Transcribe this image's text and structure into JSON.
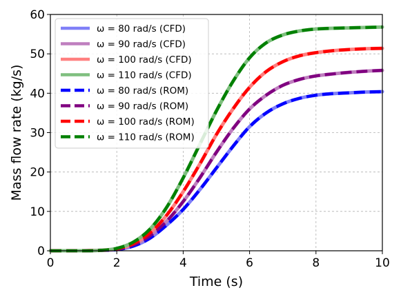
{
  "chart_data": {
    "type": "line",
    "xlabel": "Time (s)",
    "ylabel": "Mass flow rate (kg/s)",
    "xlim": [
      0,
      10
    ],
    "ylim": [
      0,
      60
    ],
    "xticks": [
      "0",
      "2",
      "4",
      "6",
      "8",
      "10"
    ],
    "yticks": [
      "0",
      "10",
      "20",
      "30",
      "40",
      "50",
      "60"
    ],
    "grid": true,
    "legend_position": "top-left",
    "x": [
      0,
      0.5,
      1,
      1.5,
      2,
      2.5,
      3,
      3.5,
      4,
      4.5,
      5,
      5.5,
      6,
      6.5,
      7,
      7.5,
      8,
      8.5,
      9,
      9.5,
      10
    ],
    "series": [
      {
        "name": "ω = 80 rad/s (CFD)",
        "color": "#7f7ff7",
        "style": "solid",
        "values": [
          0,
          0,
          0,
          0.1,
          0.3,
          1.2,
          3.2,
          6.5,
          10.5,
          15.5,
          21,
          26.5,
          31.5,
          35,
          37.3,
          38.7,
          39.5,
          39.9,
          40.1,
          40.3,
          40.4
        ]
      },
      {
        "name": "ω = 90 rad/s (CFD)",
        "color": "#bf7fbf",
        "style": "solid",
        "values": [
          0,
          0,
          0,
          0.1,
          0.4,
          1.5,
          3.8,
          7.5,
          12.5,
          18.5,
          25,
          31,
          36,
          39.5,
          42,
          43.5,
          44.4,
          44.9,
          45.3,
          45.6,
          45.8
        ]
      },
      {
        "name": "ω = 100 rad/s (CFD)",
        "color": "#ff7f7f",
        "style": "solid",
        "values": [
          0,
          0,
          0,
          0.1,
          0.5,
          1.8,
          4.5,
          9,
          15,
          22,
          29.5,
          36,
          41.5,
          45.5,
          48,
          49.5,
          50.3,
          50.8,
          51.1,
          51.3,
          51.4
        ]
      },
      {
        "name": "ω = 110 rad/s (CFD)",
        "color": "#7fbf7f",
        "style": "solid",
        "values": [
          0,
          0,
          0,
          0.1,
          0.6,
          2.2,
          5.5,
          11,
          18.5,
          27,
          35.5,
          43,
          49,
          52.8,
          54.8,
          55.8,
          56.3,
          56.5,
          56.6,
          56.7,
          56.8
        ]
      },
      {
        "name": "ω = 80 rad/s (ROM)",
        "color": "#0000ff",
        "style": "dashed",
        "values": [
          0,
          0,
          0,
          0.1,
          0.3,
          1.2,
          3.2,
          6.5,
          10.5,
          15.5,
          21,
          26.5,
          31.5,
          35,
          37.3,
          38.7,
          39.5,
          39.9,
          40.1,
          40.3,
          40.4
        ]
      },
      {
        "name": "ω = 90 rad/s (ROM)",
        "color": "#800080",
        "style": "dashed",
        "values": [
          0,
          0,
          0,
          0.1,
          0.4,
          1.5,
          3.8,
          7.5,
          12.5,
          18.5,
          25,
          31,
          36,
          39.5,
          42,
          43.5,
          44.4,
          44.9,
          45.3,
          45.6,
          45.8
        ]
      },
      {
        "name": "ω = 100 rad/s (ROM)",
        "color": "#ff0000",
        "style": "dashed",
        "values": [
          0,
          0,
          0,
          0.1,
          0.5,
          1.8,
          4.5,
          9,
          15,
          22,
          29.5,
          36,
          41.5,
          45.5,
          48,
          49.5,
          50.3,
          50.8,
          51.1,
          51.3,
          51.4
        ]
      },
      {
        "name": "ω = 110 rad/s (ROM)",
        "color": "#008000",
        "style": "dashed",
        "values": [
          0,
          0,
          0,
          0.1,
          0.6,
          2.2,
          5.5,
          11,
          18.5,
          27,
          35.5,
          43,
          49,
          52.8,
          54.8,
          55.8,
          56.3,
          56.5,
          56.6,
          56.7,
          56.8
        ]
      }
    ]
  }
}
